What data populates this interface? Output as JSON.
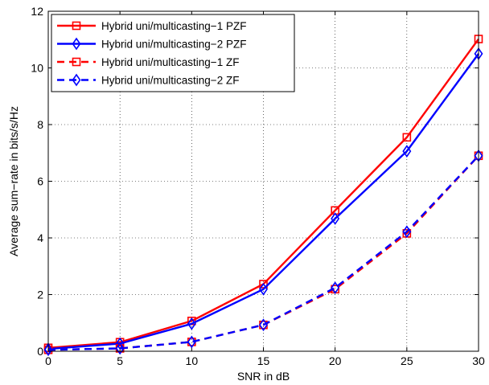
{
  "chart_data": {
    "type": "line",
    "xlabel": "SNR in dB",
    "ylabel": "Average sum−rate in bits/s/Hz",
    "xlim": [
      0,
      30
    ],
    "ylim": [
      0,
      12
    ],
    "xticks": [
      0,
      5,
      10,
      15,
      20,
      25,
      30
    ],
    "yticks": [
      0,
      2,
      4,
      6,
      8,
      10,
      12
    ],
    "grid": true,
    "legend_position": "top-left",
    "x": [
      0,
      5,
      10,
      15,
      20,
      25,
      30
    ],
    "series": [
      {
        "name": "Hybrid uni/multicasting−1 PZF",
        "values": [
          0.12,
          0.32,
          1.07,
          2.37,
          4.97,
          7.55,
          11.02
        ],
        "color": "#ff0000",
        "dash": "solid",
        "marker": "square"
      },
      {
        "name": "Hybrid uni/multicasting−2 PZF",
        "values": [
          0.08,
          0.27,
          0.97,
          2.19,
          4.68,
          7.06,
          10.5
        ],
        "color": "#0000ff",
        "dash": "solid",
        "marker": "diamond"
      },
      {
        "name": "Hybrid uni/multicasting−1 ZF",
        "values": [
          0.05,
          0.1,
          0.33,
          0.93,
          2.19,
          4.16,
          6.9
        ],
        "color": "#ff0000",
        "dash": "dashed",
        "marker": "square"
      },
      {
        "name": "Hybrid uni/multicasting−2 ZF",
        "values": [
          0.05,
          0.1,
          0.33,
          0.93,
          2.24,
          4.22,
          6.9
        ],
        "color": "#0000ff",
        "dash": "dashed",
        "marker": "diamond"
      }
    ]
  }
}
